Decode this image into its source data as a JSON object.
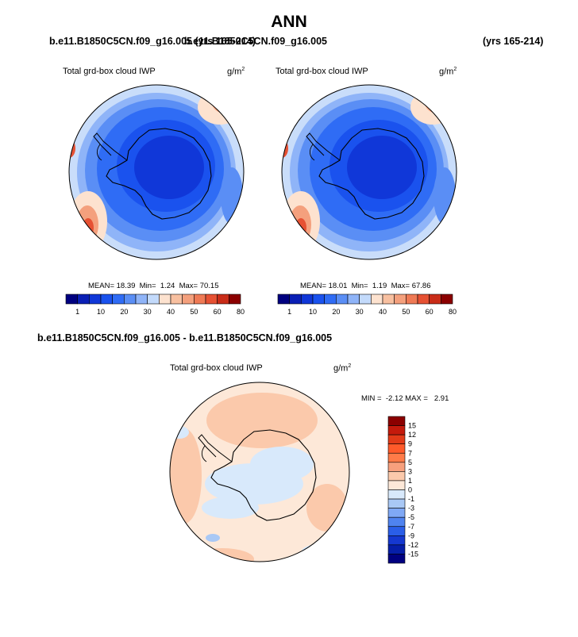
{
  "header": {
    "title": "ANN",
    "case_left": "b.e11.B1850C5CN.f09_g16.005 (yrs 165-214)",
    "case_right": "b.e11.B1850C5CN.f09_g16.005",
    "years_right": "(yrs 165-214)"
  },
  "panel_left": {
    "variable": "Total grd-box cloud IWP",
    "units_base": "g/m",
    "units_exp": "2",
    "stats": "MEAN= 18.39  Min=  1.24  Max= 70.15",
    "colorbar_labels": [
      "1",
      "10",
      "20",
      "30",
      "40",
      "50",
      "60",
      "80"
    ]
  },
  "panel_right": {
    "variable": "Total grd-box cloud IWP",
    "units_base": "g/m",
    "units_exp": "2",
    "stats": "MEAN= 18.01  Min=  1.19  Max= 67.86",
    "colorbar_labels": [
      "1",
      "10",
      "20",
      "30",
      "40",
      "50",
      "60",
      "80"
    ]
  },
  "panel_diff": {
    "case_title": "b.e11.B1850C5CN.f09_g16.005 - b.e11.B1850C5CN.f09_g16.005",
    "variable": "Total grd-box cloud IWP",
    "units_base": "g/m",
    "units_exp": "2",
    "stats": "MIN =  -2.12 MAX =   2.91",
    "colorbar_labels": [
      "15",
      "12",
      "9",
      "7",
      "5",
      "3",
      "1",
      "0",
      "-1",
      "-3",
      "-5",
      "-7",
      "-9",
      "-12",
      "-15"
    ]
  },
  "colors": {
    "abs_scale": [
      "#000080",
      "#0a1fb5",
      "#1037d8",
      "#1a52ee",
      "#2f6cf5",
      "#5a8ef5",
      "#8fb4f8",
      "#c3dafb",
      "#fde2cf",
      "#f8c0a0",
      "#f4a07d",
      "#ef7a55",
      "#e65133",
      "#c92c18",
      "#8b0000"
    ],
    "diff_scale": [
      "#8b0000",
      "#c41a0c",
      "#e23a18",
      "#ff5a2a",
      "#ff7b48",
      "#f7a07d",
      "#fbc9ab",
      "#fde8d8",
      "#d8e9fb",
      "#a9c8f5",
      "#7fa8f5",
      "#4f83f0",
      "#2a5ee8",
      "#1538d0",
      "#061ea8",
      "#000080"
    ],
    "land_outline": "#000000"
  }
}
